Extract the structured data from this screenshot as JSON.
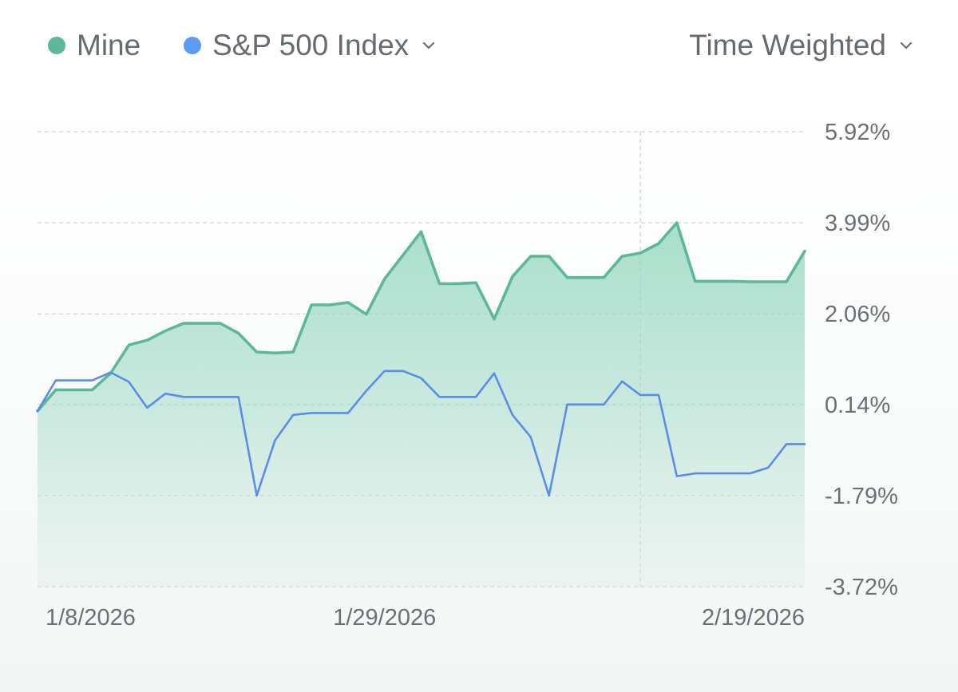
{
  "legend": {
    "mine_label": "Mine",
    "benchmark_label": "S&P 500 Index",
    "method_label": "Time Weighted"
  },
  "colors": {
    "mine": "#5cb896",
    "benchmark": "#5b8de8",
    "grid": "#cfd3d6",
    "text": "#6c7075"
  },
  "icons": {
    "benchmark_dropdown": "chevron-down-icon",
    "method_dropdown": "chevron-down-icon"
  },
  "chart_data": {
    "type": "line",
    "ylim": [
      -3.72,
      5.92
    ],
    "y_ticks": [
      5.92,
      3.99,
      2.06,
      0.14,
      -1.79,
      -3.72
    ],
    "y_tick_labels": [
      "5.92%",
      "3.99%",
      "2.06%",
      "0.14%",
      "-1.79%",
      "-3.72%"
    ],
    "x_tick_labels": [
      "1/8/2026",
      "1/29/2026",
      "2/19/2026"
    ],
    "x_tick_positions": [
      0,
      19,
      42
    ],
    "crosshair_index": 33,
    "grid": true,
    "series": [
      {
        "name": "Mine",
        "area": true,
        "values": [
          0.0,
          0.45,
          0.45,
          0.45,
          0.8,
          1.4,
          1.5,
          1.7,
          1.86,
          1.86,
          1.86,
          1.65,
          1.25,
          1.23,
          1.25,
          2.25,
          2.25,
          2.3,
          2.05,
          2.8,
          3.3,
          3.8,
          2.7,
          2.7,
          2.72,
          1.95,
          2.85,
          3.28,
          3.28,
          2.83,
          2.83,
          2.83,
          3.28,
          3.35,
          3.55,
          3.99,
          2.75,
          2.75,
          2.75,
          2.74,
          2.74,
          2.74,
          3.39
        ]
      },
      {
        "name": "S&P 500 Index",
        "area": false,
        "values": [
          0.0,
          0.65,
          0.65,
          0.65,
          0.82,
          0.62,
          0.07,
          0.37,
          0.3,
          0.3,
          0.3,
          0.3,
          -1.79,
          -0.62,
          -0.08,
          -0.04,
          -0.04,
          -0.04,
          0.43,
          0.85,
          0.85,
          0.7,
          0.3,
          0.3,
          0.3,
          0.8,
          -0.08,
          -0.55,
          -1.79,
          0.14,
          0.14,
          0.14,
          0.63,
          0.34,
          0.34,
          -1.38,
          -1.32,
          -1.32,
          -1.32,
          -1.32,
          -1.2,
          -0.7,
          -0.7
        ]
      }
    ]
  }
}
